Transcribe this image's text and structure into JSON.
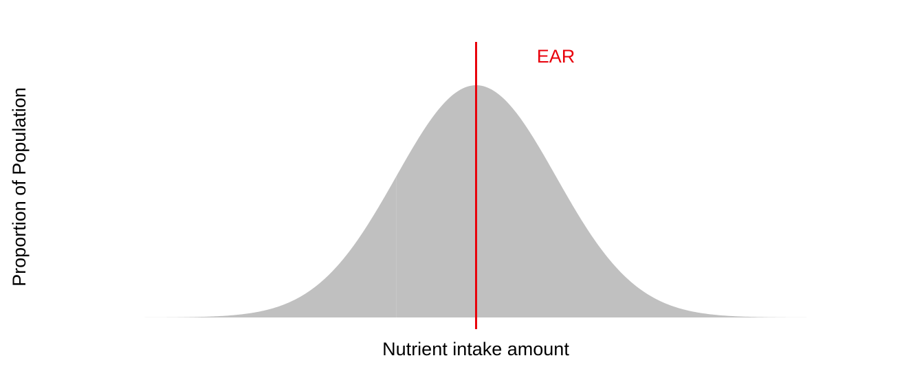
{
  "chart_data": {
    "type": "area",
    "title": "",
    "xlabel": "Nutrient intake amount",
    "ylabel": "Proportion of Population",
    "x_ticks_shown": false,
    "y_ticks_shown": false,
    "grid": false,
    "legend": "none",
    "series": [
      {
        "distribution": "normal",
        "mean": 0,
        "sd": 1,
        "x_range": [
          -4.2,
          4.2
        ],
        "fill_color": "#c0c0c0"
      }
    ],
    "xlim": [
      -4.2,
      4.2
    ],
    "ylim": [
      0,
      0.399
    ],
    "shade_boundary_x": -1,
    "markers": [
      {
        "label": "EAR",
        "x": 0,
        "color": "#e8000b"
      }
    ]
  }
}
